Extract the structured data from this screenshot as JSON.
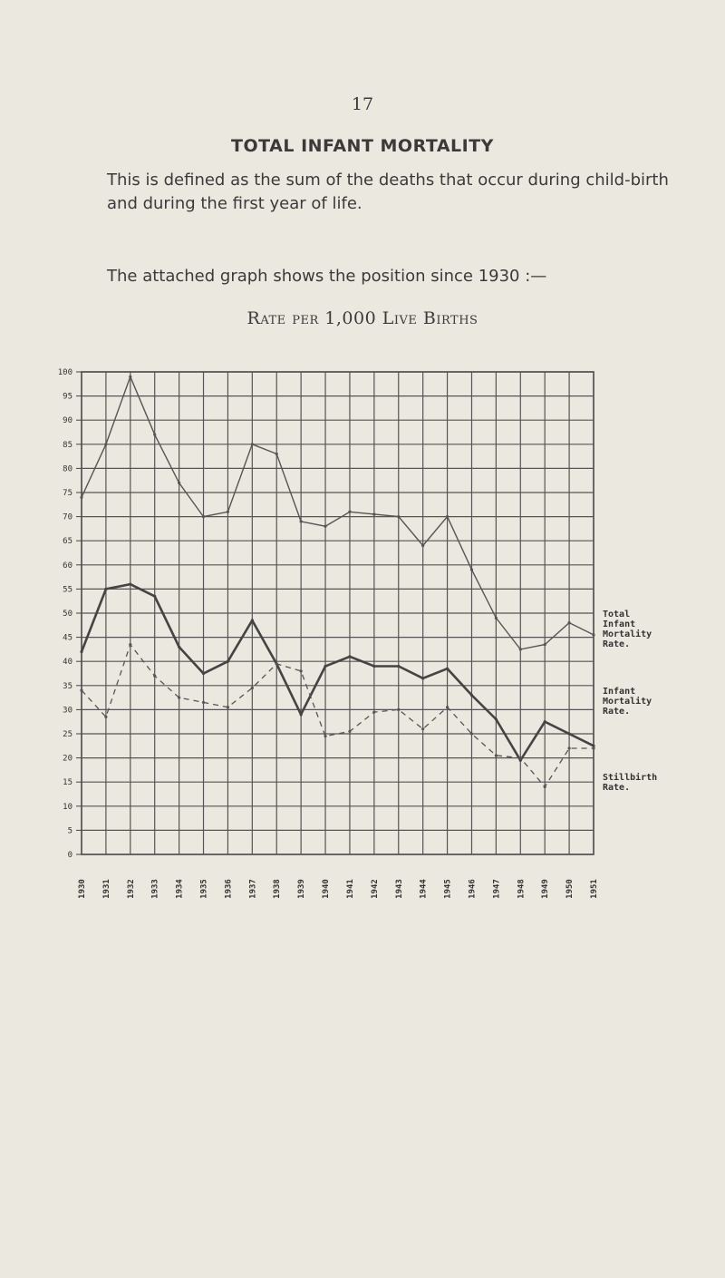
{
  "page": {
    "number": "17",
    "heading": "TOTAL INFANT MORTALITY",
    "definition": "This is defined as the sum of the deaths that occur during child-birth and during the first year of life.",
    "intro": "The attached graph shows the position since 1930 :—"
  },
  "chart_data": {
    "type": "line",
    "title": "Rate per 1,000 Live Births",
    "xlabel": "",
    "ylabel": "",
    "x": [
      "1930",
      "1931",
      "1932",
      "1933",
      "1934",
      "1935",
      "1936",
      "1937",
      "1938",
      "1939",
      "1940",
      "1941",
      "1942",
      "1943",
      "1944",
      "1945",
      "1946",
      "1947",
      "1948",
      "1949",
      "1950",
      "1951"
    ],
    "ylim": [
      0,
      100
    ],
    "yticks": [
      0,
      5,
      10,
      15,
      20,
      25,
      30,
      35,
      40,
      45,
      50,
      55,
      60,
      65,
      70,
      75,
      80,
      85,
      90,
      95,
      100
    ],
    "grid": true,
    "legend_placement": "right",
    "series": [
      {
        "name": "Total Infant Mortality Rate.",
        "style": "solid-thin",
        "color": "#555555",
        "values": [
          74,
          85,
          99,
          87,
          77,
          70,
          71,
          85,
          83,
          69,
          68,
          71,
          70.5,
          70,
          64,
          70,
          59,
          49,
          42.5,
          43.5,
          48,
          45.5
        ]
      },
      {
        "name": "Infant Mortality Rate.",
        "style": "solid-thick",
        "color": "#444444",
        "values": [
          42,
          55,
          56,
          53.5,
          43,
          37.5,
          40,
          48.5,
          39.5,
          29,
          39,
          41,
          39,
          39,
          36.5,
          38.5,
          33,
          28,
          19.5,
          27.5,
          25,
          22.5
        ]
      },
      {
        "name": "Stillbirth Rate.",
        "style": "dashed",
        "color": "#555555",
        "values": [
          34,
          28.5,
          43.5,
          37,
          32.5,
          31.5,
          30.5,
          34.5,
          39.5,
          38,
          24.5,
          25.5,
          29.5,
          30,
          26,
          30.5,
          25,
          20.5,
          20,
          14,
          22,
          22
        ]
      }
    ]
  }
}
